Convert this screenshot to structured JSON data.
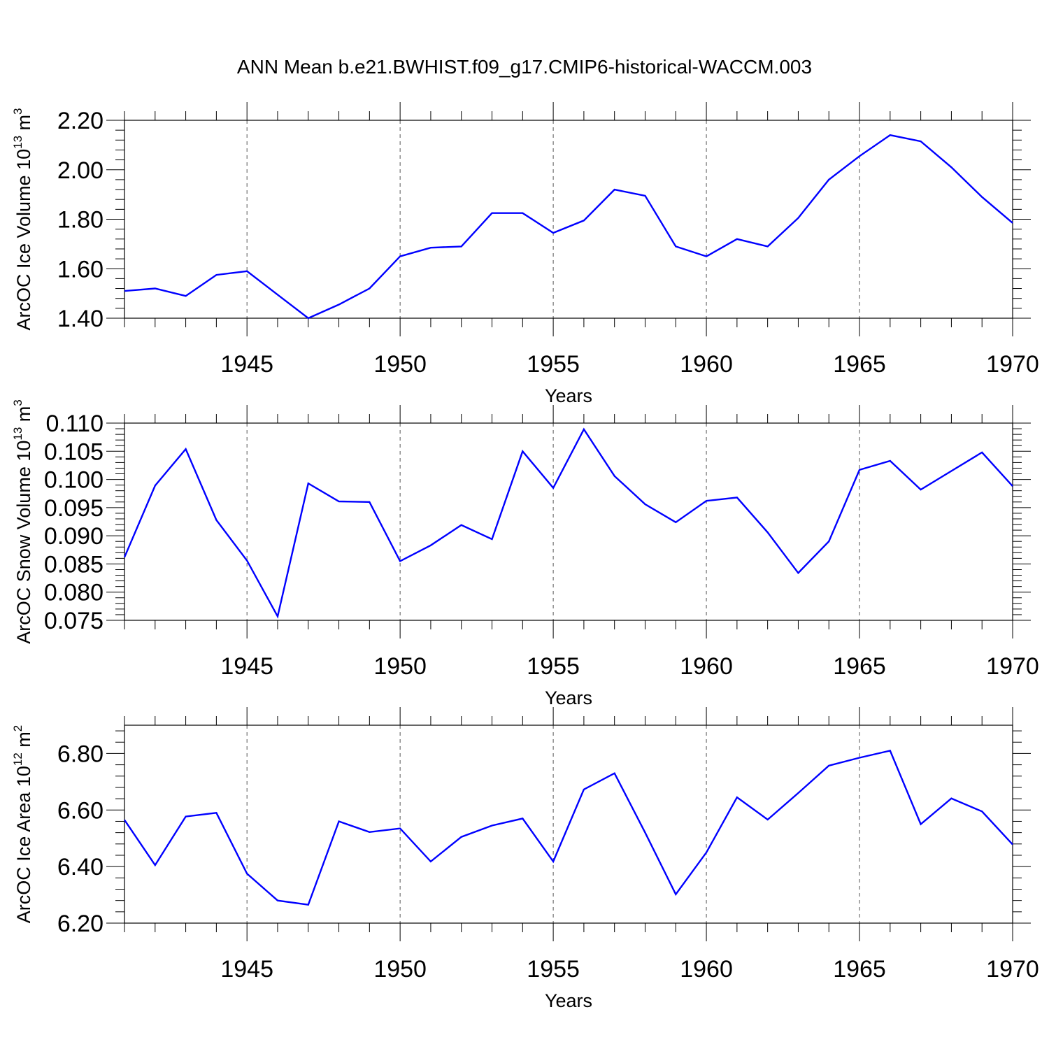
{
  "title": "ANN Mean b.e21.BWHIST.f09_g17.CMIP6-historical-WACCM.003",
  "line_color": "#0000ff",
  "chart_data": [
    {
      "type": "line",
      "ylabel": {
        "base": "ArcOC Ice Volume 10",
        "exp": "13",
        "unit": " m",
        "unit_exp": "3"
      },
      "xlabel": "Years",
      "xlim": [
        1941,
        1970
      ],
      "ylim": [
        1.4,
        2.2
      ],
      "yticks": [
        "1.40",
        "1.60",
        "1.80",
        "2.00",
        "2.20"
      ],
      "xticks": [
        "1945",
        "1950",
        "1955",
        "1960",
        "1965",
        "1970"
      ],
      "grid": "vertical dashed at major x ticks",
      "x": [
        1941,
        1942,
        1943,
        1944,
        1945,
        1946,
        1947,
        1948,
        1949,
        1950,
        1951,
        1952,
        1953,
        1954,
        1955,
        1956,
        1957,
        1958,
        1959,
        1960,
        1961,
        1962,
        1963,
        1964,
        1965,
        1966,
        1967,
        1968,
        1969,
        1970
      ],
      "values": [
        1.51,
        1.52,
        1.49,
        1.575,
        1.59,
        1.495,
        1.4,
        1.455,
        1.52,
        1.65,
        1.685,
        1.69,
        1.825,
        1.825,
        1.745,
        1.795,
        1.92,
        1.895,
        1.69,
        1.65,
        1.72,
        1.69,
        1.805,
        1.96,
        2.055,
        2.14,
        2.115,
        2.01,
        1.89,
        1.785
      ]
    },
    {
      "type": "line",
      "ylabel": {
        "base": "ArcOC Snow Volume 10",
        "exp": "13",
        "unit": " m",
        "unit_exp": "3"
      },
      "xlabel": "Years",
      "xlim": [
        1941,
        1970
      ],
      "ylim": [
        0.075,
        0.11
      ],
      "yticks": [
        "0.075",
        "0.080",
        "0.085",
        "0.090",
        "0.095",
        "0.100",
        "0.105",
        "0.110"
      ],
      "xticks": [
        "1945",
        "1950",
        "1955",
        "1960",
        "1965",
        "1970"
      ],
      "grid": "vertical dashed at major x ticks",
      "x": [
        1941,
        1942,
        1943,
        1944,
        1945,
        1946,
        1947,
        1948,
        1949,
        1950,
        1951,
        1952,
        1953,
        1954,
        1955,
        1956,
        1957,
        1958,
        1959,
        1960,
        1961,
        1962,
        1963,
        1964,
        1965,
        1966,
        1967,
        1968,
        1969,
        1970
      ],
      "values": [
        0.0862,
        0.0989,
        0.1054,
        0.0928,
        0.0856,
        0.0757,
        0.0993,
        0.0961,
        0.096,
        0.0855,
        0.0883,
        0.0919,
        0.0894,
        0.105,
        0.0985,
        0.1089,
        0.1006,
        0.0956,
        0.0924,
        0.0962,
        0.0968,
        0.0906,
        0.0834,
        0.089,
        0.1017,
        0.1033,
        0.0982,
        0.1015,
        0.1048,
        0.0988
      ]
    },
    {
      "type": "line",
      "ylabel": {
        "base": "ArcOC Ice Area 10",
        "exp": "12",
        "unit": " m",
        "unit_exp": "2"
      },
      "xlabel": "Years",
      "xlim": [
        1941,
        1970
      ],
      "ylim": [
        6.2,
        6.9
      ],
      "yticks": [
        "6.20",
        "6.40",
        "6.60",
        "6.80"
      ],
      "xticks": [
        "1945",
        "1950",
        "1955",
        "1960",
        "1965",
        "1970"
      ],
      "grid": "vertical dashed at major x ticks",
      "x": [
        1941,
        1942,
        1943,
        1944,
        1945,
        1946,
        1947,
        1948,
        1949,
        1950,
        1951,
        1952,
        1953,
        1954,
        1955,
        1956,
        1957,
        1958,
        1959,
        1960,
        1961,
        1962,
        1963,
        1964,
        1965,
        1966,
        1967,
        1968,
        1969,
        1970
      ],
      "values": [
        6.565,
        6.405,
        6.577,
        6.59,
        6.375,
        6.28,
        6.265,
        6.56,
        6.522,
        6.535,
        6.418,
        6.505,
        6.545,
        6.57,
        6.418,
        6.673,
        6.73,
        6.52,
        6.302,
        6.45,
        6.645,
        6.566,
        6.66,
        6.757,
        6.785,
        6.81,
        6.55,
        6.641,
        6.595,
        6.478
      ]
    }
  ]
}
